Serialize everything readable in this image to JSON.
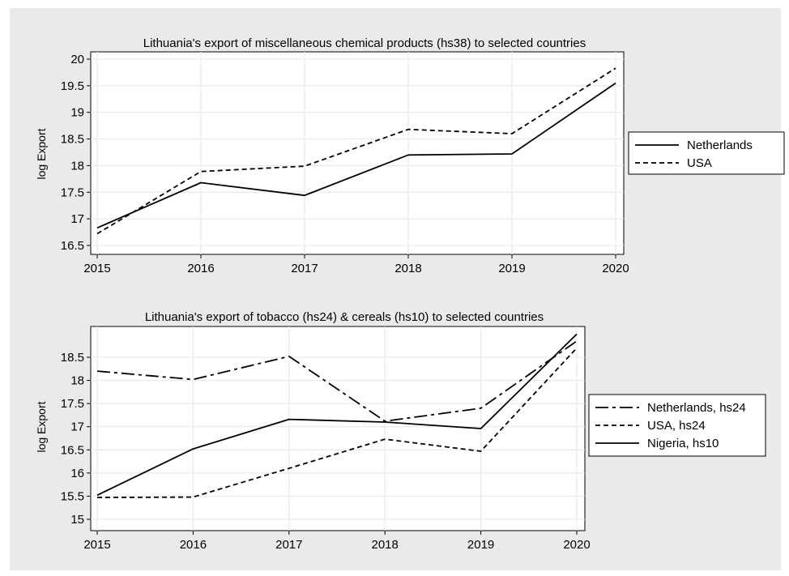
{
  "chart_data": [
    {
      "type": "line",
      "title": "Lithuania's export of miscellaneous chemical products (hs38) to selected countries",
      "xlabel": "",
      "ylabel": "log Export",
      "x": [
        2015,
        2016,
        2017,
        2018,
        2019,
        2020
      ],
      "xlim": [
        2015,
        2020
      ],
      "ylim": [
        16.5,
        20
      ],
      "yticks": [
        16.5,
        17,
        17.5,
        18,
        18.5,
        19,
        19.5,
        20
      ],
      "grid": true,
      "legend_position": "right",
      "series": [
        {
          "name": "Netherlands",
          "style": "solid",
          "values": [
            16.83,
            17.68,
            17.44,
            18.2,
            18.22,
            19.55
          ]
        },
        {
          "name": "USA",
          "style": "dash",
          "values": [
            16.72,
            17.89,
            17.99,
            18.68,
            18.6,
            19.83
          ]
        }
      ]
    },
    {
      "type": "line",
      "title": "Lithuania's export of tobacco (hs24) & cereals (hs10) to selected countries",
      "xlabel": "",
      "ylabel": "log Export",
      "x": [
        2015,
        2016,
        2017,
        2018,
        2019,
        2020
      ],
      "xlim": [
        2015,
        2020
      ],
      "ylim": [
        15,
        18.5
      ],
      "yticks": [
        15,
        15.5,
        16,
        16.5,
        17,
        17.5,
        18,
        18.5
      ],
      "grid": true,
      "legend_position": "right",
      "series": [
        {
          "name": "Netherlands, hs24",
          "style": "longdash",
          "values": [
            18.2,
            18.02,
            18.52,
            17.12,
            17.4,
            18.85
          ]
        },
        {
          "name": "USA, hs24",
          "style": "dash",
          "values": [
            15.47,
            15.48,
            16.1,
            16.73,
            16.47,
            18.7
          ]
        },
        {
          "name": "Nigeria, hs10",
          "style": "solid",
          "values": [
            15.52,
            16.52,
            17.16,
            17.1,
            16.96,
            19.0
          ]
        }
      ]
    }
  ],
  "colors": {
    "outer_background": "#eaeaea",
    "plot_background": "#ffffff",
    "grid": "#eaeaea",
    "line": "#000000"
  }
}
